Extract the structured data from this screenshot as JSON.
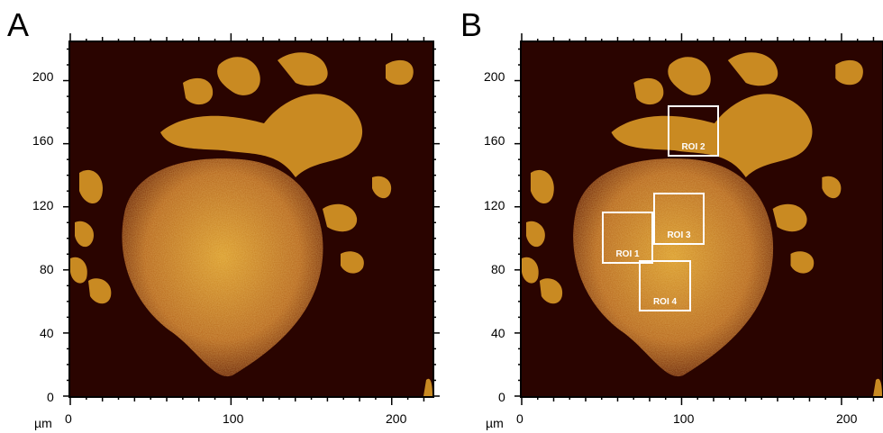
{
  "panels": [
    {
      "letter": "A",
      "unit": "µm",
      "x_ticks": [
        "0",
        "100",
        "200"
      ],
      "y_ticks": [
        "0",
        "40",
        "80",
        "120",
        "160",
        "200"
      ],
      "rois": []
    },
    {
      "letter": "B",
      "unit": "µm",
      "x_ticks": [
        "0",
        "100",
        "200"
      ],
      "y_ticks": [
        "0",
        "40",
        "80",
        "120",
        "160",
        "200"
      ],
      "rois": [
        {
          "label": "ROI 1"
        },
        {
          "label": "ROI 2"
        },
        {
          "label": "ROI 3"
        },
        {
          "label": "ROI 4"
        }
      ]
    }
  ],
  "colors": {
    "background": "#2a0400",
    "cell_dim": "#8a3a05",
    "cell_bright": "#e8b83a",
    "roi_outline": "#ffffff"
  }
}
